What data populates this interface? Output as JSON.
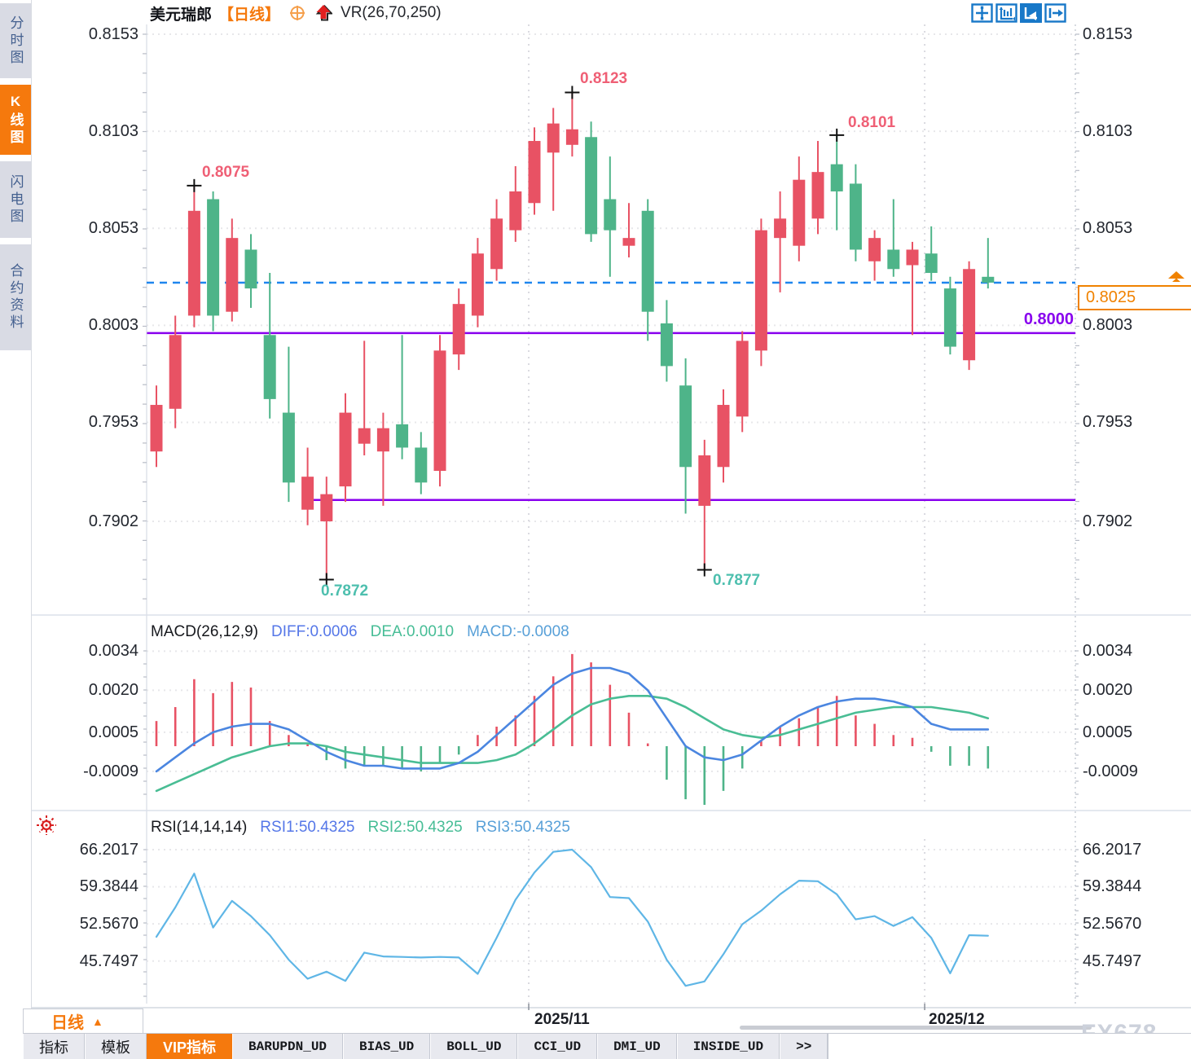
{
  "header": {
    "symbol": "美元瑞郎",
    "period": "【日线】",
    "indicator": "VR(26,70,250)"
  },
  "sidebar": {
    "tabs": [
      {
        "label": "分时图",
        "active": false
      },
      {
        "label": "K线图",
        "active": true
      },
      {
        "label": "闪电图",
        "active": false
      },
      {
        "label": "合约资料",
        "active": false
      }
    ]
  },
  "toolbar": {
    "icons": [
      "crosshair-move-icon",
      "fit-axes-icon",
      "play-chart-icon",
      "export-right-icon"
    ]
  },
  "price_panel": {
    "y_labels": [
      "0.8153",
      "0.8103",
      "0.8053",
      "0.8003",
      "0.7953",
      "0.7902"
    ],
    "current_price_label": "0.8025",
    "purple_level_label": "0.8000"
  },
  "macd_panel": {
    "title": "MACD(26,12,9)",
    "diff_text": "DIFF:0.0006",
    "dea_text": "DEA:0.0010",
    "macd_text": "MACD:-0.0008",
    "y_labels": [
      "0.0034",
      "0.0020",
      "0.0005",
      "-0.0009"
    ]
  },
  "rsi_panel": {
    "title": "RSI(14,14,14)",
    "rsi1_text": "RSI1:50.4325",
    "rsi2_text": "RSI2:50.4325",
    "rsi3_text": "RSI3:50.4325",
    "y_labels": [
      "66.2017",
      "59.3844",
      "52.5670",
      "45.7497"
    ]
  },
  "bottom": {
    "period_button": "日线",
    "period_arrow": "▲",
    "dates": [
      "2025/11",
      "2025/12"
    ],
    "watermark": "FX678"
  },
  "tabs": {
    "items": [
      {
        "label": "指标",
        "active": false
      },
      {
        "label": "模板",
        "active": false
      },
      {
        "label": "VIP指标",
        "active": true
      },
      {
        "label": "BARUPDN_UD",
        "active": false
      },
      {
        "label": "BIAS_UD",
        "active": false
      },
      {
        "label": "BOLL_UD",
        "active": false
      },
      {
        "label": "CCI_UD",
        "active": false
      },
      {
        "label": "DMI_UD",
        "active": false
      },
      {
        "label": "INSIDE_UD",
        "active": false
      },
      {
        "label": ">>",
        "active": false
      }
    ]
  },
  "colors": {
    "accent_orange": "#f5790d",
    "up_candle": "#e85264",
    "down_candle": "#4eb489",
    "purple_line": "#8800ee",
    "dashed_blue": "#1e86ee",
    "anno_high": "#ef5f75",
    "anno_low": "#4dbfae",
    "diff_line": "#4b86e0",
    "dea_line": "#49bd94",
    "rsi_line": "#5fb6e6",
    "grid": "#e7e7ea",
    "axis": "#dfe3ea",
    "marker": "#111111"
  },
  "chart_data": {
    "type": "candlestick",
    "title": "美元瑞郎 日线 (USD/CHF Daily) with MACD and RSI panels",
    "x_axis_dates": [
      "2025/11",
      "2025/12"
    ],
    "month_gridline_indices": [
      19.7,
      40.65
    ],
    "y_axis": {
      "labels": [
        0.8153,
        0.8103,
        0.8053,
        0.8003,
        0.7953,
        0.7902
      ],
      "min": 0.7872,
      "max": 0.8158
    },
    "candles": {
      "open": [
        0.7938,
        0.796,
        0.8008,
        0.8068,
        0.801,
        0.8042,
        0.7998,
        0.7958,
        0.7908,
        0.7902,
        0.792,
        0.7942,
        0.7938,
        0.7952,
        0.794,
        0.7928,
        0.7988,
        0.8008,
        0.8032,
        0.8052,
        0.8066,
        0.8092,
        0.8096,
        0.81,
        0.8068,
        0.8044,
        0.8062,
        0.8004,
        0.7972,
        0.791,
        0.793,
        0.7956,
        0.799,
        0.8048,
        0.8044,
        0.8058,
        0.8086,
        0.8076,
        0.8036,
        0.8042,
        0.8034,
        0.804,
        0.8022,
        0.7985,
        0.8028
      ],
      "high": [
        0.7972,
        0.8008,
        0.8075,
        0.8072,
        0.8058,
        0.805,
        0.803,
        0.7992,
        0.794,
        0.7925,
        0.7968,
        0.7995,
        0.7958,
        0.7998,
        0.7948,
        0.7998,
        0.8022,
        0.8048,
        0.8068,
        0.8085,
        0.8105,
        0.8115,
        0.8123,
        0.8108,
        0.809,
        0.8066,
        0.8068,
        0.8016,
        0.7986,
        0.7944,
        0.797,
        0.8,
        0.8058,
        0.8072,
        0.809,
        0.8098,
        0.8101,
        0.8086,
        0.8052,
        0.8068,
        0.8046,
        0.8054,
        0.8028,
        0.8036,
        0.8048
      ],
      "low": [
        0.793,
        0.795,
        0.8002,
        0.8,
        0.8005,
        0.8012,
        0.7955,
        0.7912,
        0.79,
        0.7872,
        0.7912,
        0.7936,
        0.791,
        0.7934,
        0.7916,
        0.792,
        0.798,
        0.8002,
        0.8026,
        0.8046,
        0.806,
        0.8062,
        0.809,
        0.8046,
        0.8028,
        0.8038,
        0.7995,
        0.7974,
        0.7906,
        0.7877,
        0.7922,
        0.7948,
        0.7982,
        0.802,
        0.8036,
        0.805,
        0.8052,
        0.8036,
        0.8026,
        0.8028,
        0.7998,
        0.8026,
        0.7988,
        0.798,
        0.8022
      ],
      "close": [
        0.7962,
        0.7998,
        0.8062,
        0.8008,
        0.8048,
        0.8022,
        0.7965,
        0.7922,
        0.7925,
        0.7916,
        0.7958,
        0.795,
        0.795,
        0.794,
        0.7922,
        0.799,
        0.8014,
        0.804,
        0.8058,
        0.8072,
        0.8098,
        0.8107,
        0.8104,
        0.805,
        0.8052,
        0.8048,
        0.801,
        0.7982,
        0.793,
        0.7936,
        0.7962,
        0.7995,
        0.8052,
        0.8058,
        0.8078,
        0.8082,
        0.8072,
        0.8042,
        0.8048,
        0.8032,
        0.8042,
        0.803,
        0.7992,
        0.8032,
        0.8025
      ]
    },
    "overlays": {
      "dashed_current_price": 0.8025,
      "support_lines": [
        {
          "value": 0.7999,
          "from_index": -0.5
        },
        {
          "value": 0.7913,
          "from_index": 8.3
        }
      ]
    },
    "annotations": [
      {
        "index": 2,
        "value": 0.8075,
        "label": "0.8075",
        "kind": "high"
      },
      {
        "index": 22,
        "value": 0.8123,
        "label": "0.8123",
        "kind": "high"
      },
      {
        "index": 36,
        "value": 0.8101,
        "label": "0.8101",
        "kind": "high"
      },
      {
        "index": 9,
        "value": 0.7872,
        "label": "0.7872",
        "kind": "low"
      },
      {
        "index": 29,
        "value": 0.7877,
        "label": "0.7877",
        "kind": "low"
      }
    ],
    "macd": {
      "params": "26,12,9",
      "current": {
        "diff": 0.0006,
        "dea": 0.001,
        "macd": -0.0008
      },
      "y_labels": [
        0.0034,
        0.002,
        0.0005,
        -0.0009
      ],
      "hist": [
        0.0009,
        0.0014,
        0.0024,
        0.0019,
        0.0023,
        0.0021,
        0.0009,
        0.0004,
        0.0001,
        -0.0005,
        -0.0008,
        -0.0007,
        -0.0007,
        -0.0008,
        -0.0009,
        -0.0006,
        -0.0003,
        0.0004,
        0.0007,
        0.0011,
        0.0018,
        0.0025,
        0.0033,
        0.003,
        0.0022,
        0.0012,
        0.0001,
        -0.0012,
        -0.0019,
        -0.0021,
        -0.0016,
        -0.0008,
        0.0002,
        0.0007,
        0.001,
        0.0014,
        0.0018,
        0.0011,
        0.0008,
        0.0004,
        0.0003,
        -0.0002,
        -0.0007,
        -0.0007,
        -0.0008
      ],
      "diff": [
        -0.0009,
        -0.0004,
        0.0001,
        0.0005,
        0.0007,
        0.0008,
        0.0008,
        0.0006,
        0.0002,
        -0.0002,
        -0.0005,
        -0.0007,
        -0.0007,
        -0.0008,
        -0.0008,
        -0.0008,
        -0.0006,
        -0.0002,
        0.0004,
        0.001,
        0.0016,
        0.0022,
        0.0026,
        0.0028,
        0.0028,
        0.0026,
        0.002,
        0.001,
        0.0,
        -0.0004,
        -0.0005,
        -0.0003,
        0.0002,
        0.0007,
        0.0011,
        0.0014,
        0.0016,
        0.0017,
        0.0017,
        0.0016,
        0.0014,
        0.0008,
        0.0006,
        0.0006,
        0.0006
      ],
      "dea": [
        -0.0016,
        -0.0013,
        -0.001,
        -0.0007,
        -0.0004,
        -0.0002,
        0.0,
        0.0001,
        0.0001,
        0.0,
        -0.0002,
        -0.0003,
        -0.0004,
        -0.0005,
        -0.0006,
        -0.0006,
        -0.0006,
        -0.0006,
        -0.0005,
        -0.0003,
        0.0001,
        0.0006,
        0.0011,
        0.0015,
        0.0017,
        0.0018,
        0.0018,
        0.0017,
        0.0014,
        0.001,
        0.0006,
        0.0004,
        0.0003,
        0.0004,
        0.0006,
        0.0008,
        0.001,
        0.0012,
        0.0013,
        0.0014,
        0.0014,
        0.0014,
        0.0013,
        0.0012,
        0.001
      ]
    },
    "rsi": {
      "params": "14,14,14",
      "current": {
        "rsi1": 50.4325,
        "rsi2": 50.4325,
        "rsi3": 50.4325
      },
      "y_labels": [
        66.2017,
        59.3844,
        52.567,
        45.7497
      ],
      "values": [
        50.2,
        55.6,
        61.8,
        51.9,
        56.8,
        54.0,
        50.5,
        46.0,
        42.5,
        43.8,
        42.1,
        47.3,
        46.6,
        46.5,
        46.4,
        46.5,
        46.4,
        43.4,
        50.0,
        57.0,
        62.0,
        65.8,
        66.2,
        63.0,
        57.5,
        57.3,
        53.0,
        46.0,
        41.2,
        42.0,
        47.0,
        52.5,
        55.0,
        58.0,
        60.5,
        60.4,
        58.0,
        53.4,
        54.0,
        52.2,
        53.8,
        50.0,
        43.5,
        50.5,
        50.4
      ]
    }
  }
}
